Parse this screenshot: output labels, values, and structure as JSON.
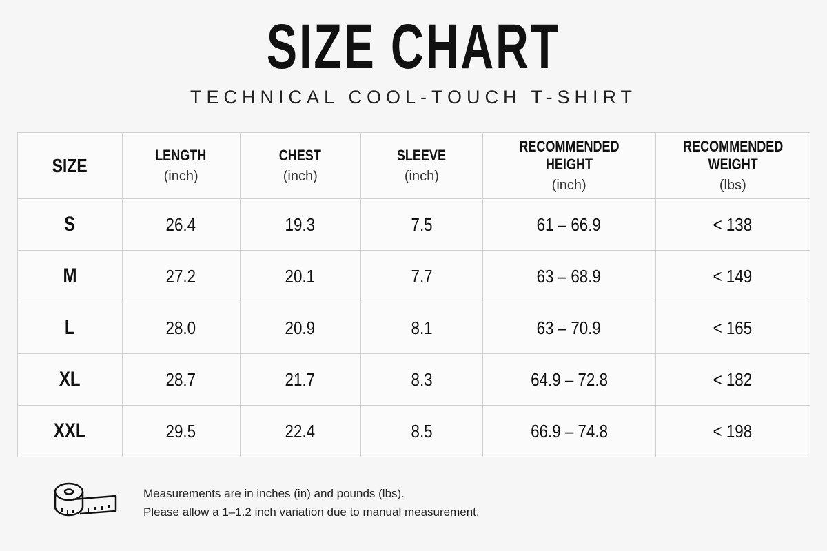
{
  "header": {
    "title": "SIZE CHART",
    "subtitle": "TECHNICAL COOL-TOUCH T-SHIRT"
  },
  "table": {
    "columns": [
      {
        "label": "SIZE"
      },
      {
        "label": "LENGTH",
        "unit": "(inch)"
      },
      {
        "label": "CHEST",
        "unit": "(inch)"
      },
      {
        "label": "SLEEVE",
        "unit": "(inch)"
      },
      {
        "label": "RECOMMENDED HEIGHT",
        "unit": "(inch)"
      },
      {
        "label": "RECOMMENDED WEIGHT",
        "unit": "(lbs)"
      }
    ],
    "rows": [
      [
        "S",
        "26.4",
        "19.3",
        "7.5",
        "61 – 66.9",
        "< 138"
      ],
      [
        "M",
        "27.2",
        "20.1",
        "7.7",
        "63 – 68.9",
        "< 149"
      ],
      [
        "L",
        "28.0",
        "20.9",
        "8.1",
        "63 – 70.9",
        "< 165"
      ],
      [
        "XL",
        "28.7",
        "21.7",
        "8.3",
        "64.9 – 72.8",
        "< 182"
      ],
      [
        "XXL",
        "29.5",
        "22.4",
        "8.5",
        "66.9 – 74.8",
        "< 198"
      ]
    ]
  },
  "footer": {
    "lines": [
      "Measurements are in inches (in) and pounds (lbs).",
      "Please allow a 1–1.2 inch variation due to manual measurement."
    ]
  }
}
